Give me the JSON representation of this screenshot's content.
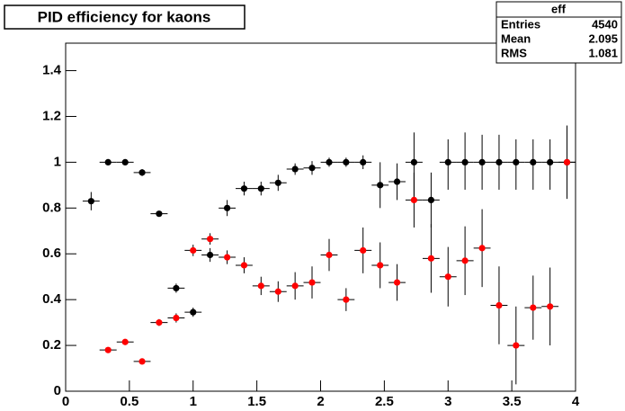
{
  "chart_data": {
    "type": "errorbar",
    "title": "PID efficiency for kaons",
    "stats": {
      "name": "eff",
      "rows": [
        [
          "Entries",
          4540
        ],
        [
          "Mean",
          2.095
        ],
        [
          "RMS",
          1.081
        ]
      ]
    },
    "xlim": [
      0,
      4
    ],
    "xticks": [
      0,
      0.5,
      1,
      1.5,
      2,
      2.5,
      3,
      3.5,
      4
    ],
    "ylim": [
      0,
      1.52
    ],
    "yticks": [
      0,
      0.2,
      0.4,
      0.6,
      0.8,
      1,
      1.2,
      1.4
    ],
    "series": [
      {
        "color": "#000000",
        "x": [
          0.2,
          0.333,
          0.467,
          0.6,
          0.733,
          0.867,
          1.0,
          1.133,
          1.267,
          1.4,
          1.533,
          1.667,
          1.8,
          1.933,
          2.067,
          2.2,
          2.333,
          2.467,
          2.6,
          2.733,
          2.867,
          3.0,
          3.133,
          3.267,
          3.4,
          3.533,
          3.667,
          3.8,
          3.933
        ],
        "values": [
          0.83,
          1.0,
          1.0,
          0.955,
          0.775,
          0.45,
          0.345,
          0.595,
          0.8,
          0.885,
          0.885,
          0.91,
          0.97,
          0.975,
          1.0,
          1.0,
          1.0,
          0.9,
          0.915,
          1.0,
          0.835,
          1.0,
          1.0,
          1.0,
          1.0,
          1.0,
          1.0,
          1.0,
          1.0
        ],
        "errors_low": [
          0.04,
          0.01,
          0.01,
          0.015,
          0.01,
          0.02,
          0.02,
          0.03,
          0.035,
          0.03,
          0.03,
          0.035,
          0.025,
          0.03,
          0.02,
          0.02,
          0.03,
          0.1,
          0.08,
          0.17,
          0.12,
          0.12,
          0.12,
          0.12,
          0.12,
          0.12,
          0.12,
          0.12,
          0.12
        ],
        "errors_high": [
          0.04,
          0.0,
          0.0,
          0.015,
          0.01,
          0.02,
          0.02,
          0.03,
          0.035,
          0.03,
          0.03,
          0.035,
          0.025,
          0.03,
          0.02,
          0.02,
          0.03,
          0.1,
          0.08,
          0.13,
          0.12,
          0.1,
          0.13,
          0.12,
          0.12,
          0.1,
          0.1,
          0.1,
          0.16
        ]
      },
      {
        "color": "#ff0000",
        "x": [
          0.333,
          0.467,
          0.6,
          0.733,
          0.867,
          1.0,
          1.133,
          1.267,
          1.4,
          1.533,
          1.667,
          1.8,
          1.933,
          2.067,
          2.2,
          2.333,
          2.467,
          2.6,
          2.733,
          2.867,
          3.0,
          3.133,
          3.267,
          3.4,
          3.533,
          3.667,
          3.8,
          3.933
        ],
        "values": [
          0.18,
          0.215,
          0.13,
          0.3,
          0.32,
          0.615,
          0.665,
          0.585,
          0.55,
          0.46,
          0.435,
          0.46,
          0.475,
          0.595,
          0.4,
          0.615,
          0.55,
          0.475,
          0.835,
          0.58,
          0.5,
          0.57,
          0.625,
          0.375,
          0.2,
          0.365,
          0.37,
          1.0
        ],
        "errors_low": [
          0.01,
          0.01,
          0.01,
          0.015,
          0.02,
          0.025,
          0.025,
          0.03,
          0.035,
          0.04,
          0.045,
          0.06,
          0.07,
          0.07,
          0.05,
          0.1,
          0.1,
          0.08,
          0.12,
          0.15,
          0.13,
          0.15,
          0.17,
          0.17,
          0.17,
          0.14,
          0.17,
          0.16
        ],
        "errors_high": [
          0.01,
          0.01,
          0.01,
          0.015,
          0.02,
          0.025,
          0.025,
          0.03,
          0.035,
          0.04,
          0.045,
          0.06,
          0.07,
          0.07,
          0.05,
          0.1,
          0.1,
          0.08,
          0.12,
          0.15,
          0.13,
          0.15,
          0.17,
          0.17,
          0.17,
          0.14,
          0.17,
          0.16
        ]
      }
    ]
  }
}
